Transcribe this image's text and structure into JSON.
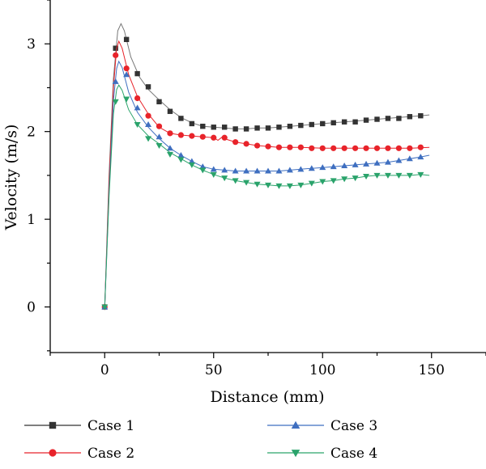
{
  "chart_data": {
    "type": "line",
    "xlabel": "Distance (mm)",
    "ylabel": "Velocity (m/s)",
    "xlim": [
      -25,
      175
    ],
    "ylim": [
      -0.52,
      3.5
    ],
    "x_ticks": [
      0,
      50,
      100,
      150
    ],
    "y_ticks": [
      0,
      1,
      2,
      3
    ],
    "grid": false,
    "legend_position": "bottom",
    "series": [
      {
        "name": "Case 1",
        "color": "#333333",
        "marker": "square",
        "curve": [
          [
            0,
            0
          ],
          [
            2,
            1.5
          ],
          [
            4,
            2.6
          ],
          [
            6,
            3.15
          ],
          [
            7.5,
            3.23
          ],
          [
            9,
            3.15
          ],
          [
            12,
            2.85
          ],
          [
            16,
            2.62
          ],
          [
            20,
            2.48
          ],
          [
            25,
            2.36
          ],
          [
            30,
            2.25
          ],
          [
            35,
            2.16
          ],
          [
            40,
            2.1
          ],
          [
            45,
            2.06
          ],
          [
            50,
            2.05
          ],
          [
            55,
            2.04
          ],
          [
            60,
            2.03
          ],
          [
            65,
            2.03
          ],
          [
            70,
            2.04
          ],
          [
            75,
            2.04
          ],
          [
            80,
            2.05
          ],
          [
            85,
            2.06
          ],
          [
            90,
            2.07
          ],
          [
            95,
            2.08
          ],
          [
            100,
            2.09
          ],
          [
            105,
            2.1
          ],
          [
            110,
            2.11
          ],
          [
            115,
            2.12
          ],
          [
            120,
            2.13
          ],
          [
            125,
            2.14
          ],
          [
            130,
            2.15
          ],
          [
            135,
            2.16
          ],
          [
            140,
            2.17
          ],
          [
            145,
            2.18
          ],
          [
            149,
            2.19
          ]
        ],
        "markers": [
          [
            0,
            0
          ],
          [
            5,
            2.95
          ],
          [
            10,
            3.05
          ],
          [
            15,
            2.66
          ],
          [
            20,
            2.51
          ],
          [
            25,
            2.34
          ],
          [
            30,
            2.23
          ],
          [
            35,
            2.15
          ],
          [
            40,
            2.09
          ],
          [
            45,
            2.06
          ],
          [
            50,
            2.05
          ],
          [
            55,
            2.05
          ],
          [
            60,
            2.03
          ],
          [
            65,
            2.03
          ],
          [
            70,
            2.04
          ],
          [
            75,
            2.04
          ],
          [
            80,
            2.05
          ],
          [
            85,
            2.06
          ],
          [
            90,
            2.07
          ],
          [
            95,
            2.08
          ],
          [
            100,
            2.09
          ],
          [
            105,
            2.1
          ],
          [
            110,
            2.11
          ],
          [
            115,
            2.11
          ],
          [
            120,
            2.13
          ],
          [
            125,
            2.14
          ],
          [
            130,
            2.15
          ],
          [
            135,
            2.15
          ],
          [
            140,
            2.17
          ],
          [
            145,
            2.18
          ]
        ]
      },
      {
        "name": "Case 2",
        "color": "#e8232a",
        "marker": "circle",
        "curve": [
          [
            0,
            0
          ],
          [
            2,
            1.4
          ],
          [
            4,
            2.5
          ],
          [
            5.5,
            2.95
          ],
          [
            6.5,
            3.03
          ],
          [
            8,
            2.95
          ],
          [
            11,
            2.65
          ],
          [
            15,
            2.4
          ],
          [
            20,
            2.2
          ],
          [
            25,
            2.05
          ],
          [
            30,
            1.98
          ],
          [
            35,
            1.96
          ],
          [
            40,
            1.95
          ],
          [
            45,
            1.94
          ],
          [
            50,
            1.93
          ],
          [
            52,
            1.9
          ],
          [
            54,
            1.94
          ],
          [
            56,
            1.91
          ],
          [
            60,
            1.88
          ],
          [
            65,
            1.86
          ],
          [
            70,
            1.84
          ],
          [
            75,
            1.83
          ],
          [
            80,
            1.82
          ],
          [
            90,
            1.82
          ],
          [
            100,
            1.81
          ],
          [
            110,
            1.81
          ],
          [
            120,
            1.81
          ],
          [
            130,
            1.81
          ],
          [
            140,
            1.81
          ],
          [
            149,
            1.82
          ]
        ],
        "markers": [
          [
            0,
            0
          ],
          [
            5,
            2.87
          ],
          [
            10,
            2.72
          ],
          [
            15,
            2.38
          ],
          [
            20,
            2.18
          ],
          [
            25,
            2.06
          ],
          [
            30,
            1.98
          ],
          [
            35,
            1.96
          ],
          [
            40,
            1.95
          ],
          [
            45,
            1.94
          ],
          [
            50,
            1.93
          ],
          [
            55,
            1.93
          ],
          [
            60,
            1.88
          ],
          [
            65,
            1.86
          ],
          [
            70,
            1.84
          ],
          [
            75,
            1.83
          ],
          [
            80,
            1.82
          ],
          [
            85,
            1.82
          ],
          [
            90,
            1.82
          ],
          [
            95,
            1.81
          ],
          [
            100,
            1.81
          ],
          [
            105,
            1.81
          ],
          [
            110,
            1.81
          ],
          [
            115,
            1.81
          ],
          [
            120,
            1.81
          ],
          [
            125,
            1.81
          ],
          [
            130,
            1.81
          ],
          [
            135,
            1.81
          ],
          [
            140,
            1.81
          ],
          [
            145,
            1.82
          ]
        ]
      },
      {
        "name": "Case 3",
        "color": "#3f6fc0",
        "marker": "triangle-up",
        "curve": [
          [
            0,
            0
          ],
          [
            2,
            1.3
          ],
          [
            4,
            2.35
          ],
          [
            5.5,
            2.72
          ],
          [
            6.5,
            2.8
          ],
          [
            8,
            2.73
          ],
          [
            11,
            2.45
          ],
          [
            15,
            2.22
          ],
          [
            20,
            2.05
          ],
          [
            25,
            1.92
          ],
          [
            30,
            1.81
          ],
          [
            35,
            1.73
          ],
          [
            40,
            1.66
          ],
          [
            45,
            1.6
          ],
          [
            50,
            1.57
          ],
          [
            55,
            1.56
          ],
          [
            60,
            1.55
          ],
          [
            65,
            1.55
          ],
          [
            70,
            1.55
          ],
          [
            75,
            1.55
          ],
          [
            80,
            1.55
          ],
          [
            85,
            1.56
          ],
          [
            90,
            1.57
          ],
          [
            95,
            1.58
          ],
          [
            100,
            1.59
          ],
          [
            105,
            1.6
          ],
          [
            110,
            1.61
          ],
          [
            115,
            1.62
          ],
          [
            120,
            1.63
          ],
          [
            125,
            1.64
          ],
          [
            130,
            1.65
          ],
          [
            135,
            1.67
          ],
          [
            140,
            1.69
          ],
          [
            145,
            1.71
          ],
          [
            149,
            1.73
          ]
        ],
        "markers": [
          [
            0,
            0
          ],
          [
            5,
            2.57
          ],
          [
            10,
            2.65
          ],
          [
            15,
            2.27
          ],
          [
            20,
            2.08
          ],
          [
            25,
            1.94
          ],
          [
            30,
            1.81
          ],
          [
            35,
            1.73
          ],
          [
            40,
            1.66
          ],
          [
            45,
            1.6
          ],
          [
            50,
            1.57
          ],
          [
            55,
            1.56
          ],
          [
            60,
            1.55
          ],
          [
            65,
            1.55
          ],
          [
            70,
            1.55
          ],
          [
            75,
            1.55
          ],
          [
            80,
            1.55
          ],
          [
            85,
            1.56
          ],
          [
            90,
            1.57
          ],
          [
            95,
            1.58
          ],
          [
            100,
            1.59
          ],
          [
            105,
            1.6
          ],
          [
            110,
            1.61
          ],
          [
            115,
            1.62
          ],
          [
            120,
            1.63
          ],
          [
            125,
            1.64
          ],
          [
            130,
            1.65
          ],
          [
            135,
            1.67
          ],
          [
            140,
            1.69
          ],
          [
            145,
            1.71
          ]
        ]
      },
      {
        "name": "Case 4",
        "color": "#2aa36b",
        "marker": "triangle-down",
        "curve": [
          [
            0,
            0
          ],
          [
            2,
            1.25
          ],
          [
            4,
            2.2
          ],
          [
            5.5,
            2.48
          ],
          [
            6.5,
            2.53
          ],
          [
            8,
            2.47
          ],
          [
            11,
            2.25
          ],
          [
            15,
            2.08
          ],
          [
            20,
            1.95
          ],
          [
            25,
            1.86
          ],
          [
            30,
            1.76
          ],
          [
            35,
            1.69
          ],
          [
            40,
            1.62
          ],
          [
            45,
            1.56
          ],
          [
            50,
            1.51
          ],
          [
            55,
            1.47
          ],
          [
            60,
            1.44
          ],
          [
            65,
            1.42
          ],
          [
            70,
            1.4
          ],
          [
            75,
            1.39
          ],
          [
            80,
            1.38
          ],
          [
            85,
            1.38
          ],
          [
            90,
            1.39
          ],
          [
            95,
            1.41
          ],
          [
            100,
            1.43
          ],
          [
            105,
            1.44
          ],
          [
            110,
            1.46
          ],
          [
            115,
            1.47
          ],
          [
            120,
            1.49
          ],
          [
            125,
            1.5
          ],
          [
            130,
            1.5
          ],
          [
            135,
            1.5
          ],
          [
            140,
            1.5
          ],
          [
            145,
            1.51
          ],
          [
            149,
            1.5
          ]
        ],
        "markers": [
          [
            0,
            0
          ],
          [
            5,
            2.34
          ],
          [
            10,
            2.37
          ],
          [
            15,
            2.08
          ],
          [
            20,
            1.92
          ],
          [
            25,
            1.84
          ],
          [
            30,
            1.74
          ],
          [
            35,
            1.68
          ],
          [
            40,
            1.62
          ],
          [
            45,
            1.56
          ],
          [
            50,
            1.51
          ],
          [
            55,
            1.47
          ],
          [
            60,
            1.44
          ],
          [
            65,
            1.42
          ],
          [
            70,
            1.4
          ],
          [
            75,
            1.39
          ],
          [
            80,
            1.38
          ],
          [
            85,
            1.38
          ],
          [
            90,
            1.39
          ],
          [
            95,
            1.41
          ],
          [
            100,
            1.43
          ],
          [
            105,
            1.44
          ],
          [
            110,
            1.46
          ],
          [
            115,
            1.47
          ],
          [
            120,
            1.49
          ],
          [
            125,
            1.5
          ],
          [
            130,
            1.5
          ],
          [
            135,
            1.5
          ],
          [
            140,
            1.5
          ],
          [
            145,
            1.51
          ]
        ]
      }
    ]
  }
}
